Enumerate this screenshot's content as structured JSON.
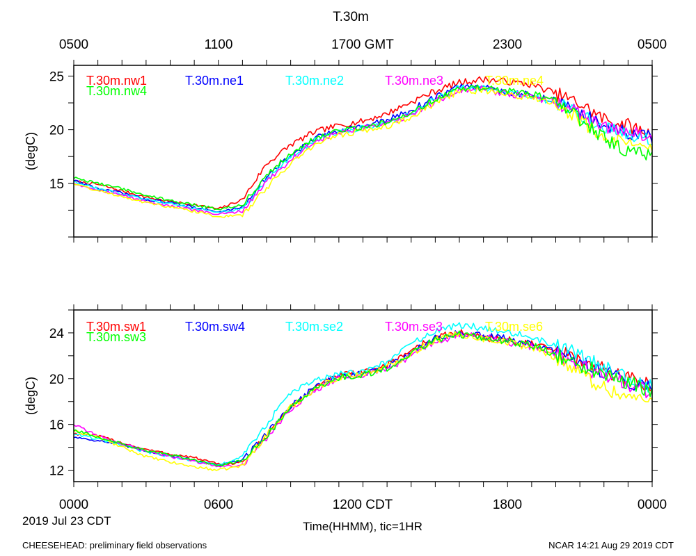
{
  "title": "T.30m",
  "gmt_axis": {
    "labels": [
      "0500",
      "1100",
      "1700 GMT",
      "2300",
      "0500"
    ]
  },
  "cdt_axis": {
    "labels": [
      "0000",
      "0600",
      "1200 CDT",
      "1800",
      "0000"
    ]
  },
  "date_label": "2019 Jul 23 CDT",
  "xlabel": "Time(HHMM), tic=1HR",
  "footer": {
    "left": "CHEESEHEAD: preliminary field observations",
    "right": "NCAR 14:21 Aug 29 2019 CDT"
  },
  "chart_data": [
    {
      "type": "line",
      "ylabel": "(degC)",
      "xlim": [
        0,
        24
      ],
      "ylim": [
        10,
        26
      ],
      "yticks": [
        15,
        20,
        25
      ],
      "grid": false,
      "x": [
        0,
        1,
        2,
        3,
        4,
        5,
        6,
        7,
        8,
        9,
        10,
        11,
        12,
        13,
        14,
        15,
        16,
        17,
        18,
        19,
        20,
        21,
        22,
        23,
        24
      ],
      "series": [
        {
          "name": "T.30m.nw1",
          "color": "#ff0000",
          "values": [
            15.2,
            14.9,
            14.3,
            13.7,
            13.3,
            13.0,
            12.6,
            13.5,
            16.8,
            18.6,
            19.8,
            20.4,
            20.8,
            21.5,
            22.6,
            23.6,
            24.4,
            24.7,
            24.5,
            24.2,
            23.4,
            22.4,
            21.0,
            20.4,
            19.5
          ]
        },
        {
          "name": "T.30m.ne1",
          "color": "#0000ff",
          "values": [
            15.3,
            14.5,
            14.1,
            13.5,
            13.2,
            12.8,
            12.3,
            12.8,
            15.6,
            17.6,
            19.2,
            20.0,
            20.3,
            20.9,
            21.8,
            23.0,
            24.0,
            24.0,
            23.5,
            23.2,
            22.7,
            21.6,
            20.4,
            19.6,
            19.2
          ]
        },
        {
          "name": "T.30m.ne2",
          "color": "#00ffff",
          "values": [
            15.2,
            14.5,
            14.0,
            13.5,
            13.1,
            12.7,
            12.3,
            12.6,
            15.4,
            17.4,
            19.0,
            19.8,
            20.2,
            20.6,
            21.5,
            22.8,
            23.9,
            23.8,
            23.4,
            23.1,
            22.5,
            21.4,
            20.2,
            19.6,
            19.0
          ]
        },
        {
          "name": "T.30m.ne3",
          "color": "#ff00ff",
          "values": [
            15.0,
            14.4,
            13.9,
            13.3,
            12.9,
            12.5,
            12.1,
            12.4,
            15.2,
            17.2,
            18.9,
            19.7,
            20.1,
            20.5,
            21.4,
            22.6,
            23.7,
            23.8,
            23.3,
            23.0,
            22.6,
            21.5,
            20.3,
            19.7,
            19.4
          ]
        },
        {
          "name": "T.30m.ne4",
          "color": "#ffff00",
          "values": [
            15.0,
            14.3,
            13.8,
            13.2,
            12.8,
            12.4,
            11.9,
            12.0,
            14.6,
            16.9,
            18.6,
            19.5,
            19.9,
            20.3,
            21.2,
            22.5,
            23.6,
            23.7,
            23.3,
            23.0,
            22.5,
            20.9,
            19.2,
            18.6,
            18.0
          ]
        },
        {
          "name": "T.30m.nw4",
          "color": "#00ff00",
          "values": [
            15.5,
            15.0,
            14.5,
            13.9,
            13.4,
            13.0,
            12.6,
            13.0,
            15.8,
            17.8,
            19.2,
            19.9,
            20.2,
            20.7,
            21.6,
            22.9,
            23.8,
            23.9,
            23.6,
            23.3,
            22.8,
            21.0,
            19.2,
            18.0,
            17.8
          ]
        }
      ]
    },
    {
      "type": "line",
      "ylabel": "(degC)",
      "xlim": [
        0,
        24
      ],
      "ylim": [
        11,
        26
      ],
      "yticks": [
        12,
        16,
        20,
        24
      ],
      "grid": false,
      "x": [
        0,
        1,
        2,
        3,
        4,
        5,
        6,
        7,
        8,
        9,
        10,
        11,
        12,
        13,
        14,
        15,
        16,
        17,
        18,
        19,
        20,
        21,
        22,
        23,
        24
      ],
      "series": [
        {
          "name": "T.30m.sw1",
          "color": "#ff0000",
          "values": [
            15.2,
            15.0,
            14.4,
            13.8,
            13.4,
            13.1,
            12.5,
            12.7,
            15.0,
            17.5,
            19.2,
            20.3,
            20.5,
            21.2,
            22.5,
            23.6,
            24.0,
            23.6,
            23.4,
            23.0,
            22.4,
            21.6,
            20.8,
            20.0,
            19.4
          ]
        },
        {
          "name": "T.30m.sw4",
          "color": "#0000ff",
          "values": [
            14.9,
            14.6,
            14.2,
            13.7,
            13.3,
            12.9,
            12.4,
            12.9,
            15.2,
            17.6,
            19.3,
            20.2,
            20.4,
            21.0,
            22.3,
            23.5,
            24.0,
            23.7,
            23.5,
            23.0,
            22.3,
            21.5,
            20.6,
            19.8,
            19.2
          ]
        },
        {
          "name": "T.30m.se2",
          "color": "#00ffff",
          "values": [
            15.2,
            14.7,
            14.2,
            13.6,
            13.2,
            12.8,
            12.4,
            13.2,
            16.0,
            18.8,
            19.8,
            20.4,
            20.6,
            21.5,
            23.0,
            24.2,
            24.6,
            24.5,
            24.1,
            23.6,
            22.9,
            22.0,
            21.0,
            20.0,
            19.3
          ]
        },
        {
          "name": "T.30m.se3",
          "color": "#ff00ff",
          "values": [
            16.0,
            15.0,
            14.3,
            13.7,
            13.2,
            12.8,
            12.3,
            12.5,
            14.8,
            17.4,
            19.0,
            20.0,
            20.3,
            20.8,
            22.0,
            23.2,
            23.8,
            23.6,
            23.2,
            22.8,
            22.1,
            21.0,
            20.3,
            19.4,
            18.8
          ]
        },
        {
          "name": "T.30m.se6",
          "color": "#ffff00",
          "values": [
            15.4,
            14.9,
            14.0,
            13.2,
            12.7,
            12.3,
            12.0,
            12.4,
            15.1,
            17.5,
            19.1,
            20.1,
            20.4,
            21.0,
            22.2,
            23.4,
            23.9,
            23.5,
            23.2,
            22.7,
            21.9,
            20.5,
            19.2,
            18.4,
            18.0
          ]
        },
        {
          "name": "T.30m.sw3",
          "color": "#00ff00",
          "values": [
            15.5,
            14.9,
            14.3,
            13.7,
            13.3,
            12.9,
            12.4,
            12.8,
            15.0,
            17.4,
            19.1,
            20.1,
            20.3,
            20.9,
            22.2,
            23.4,
            23.9,
            23.6,
            23.3,
            22.9,
            22.1,
            21.2,
            20.4,
            19.7,
            18.9
          ]
        }
      ]
    }
  ]
}
